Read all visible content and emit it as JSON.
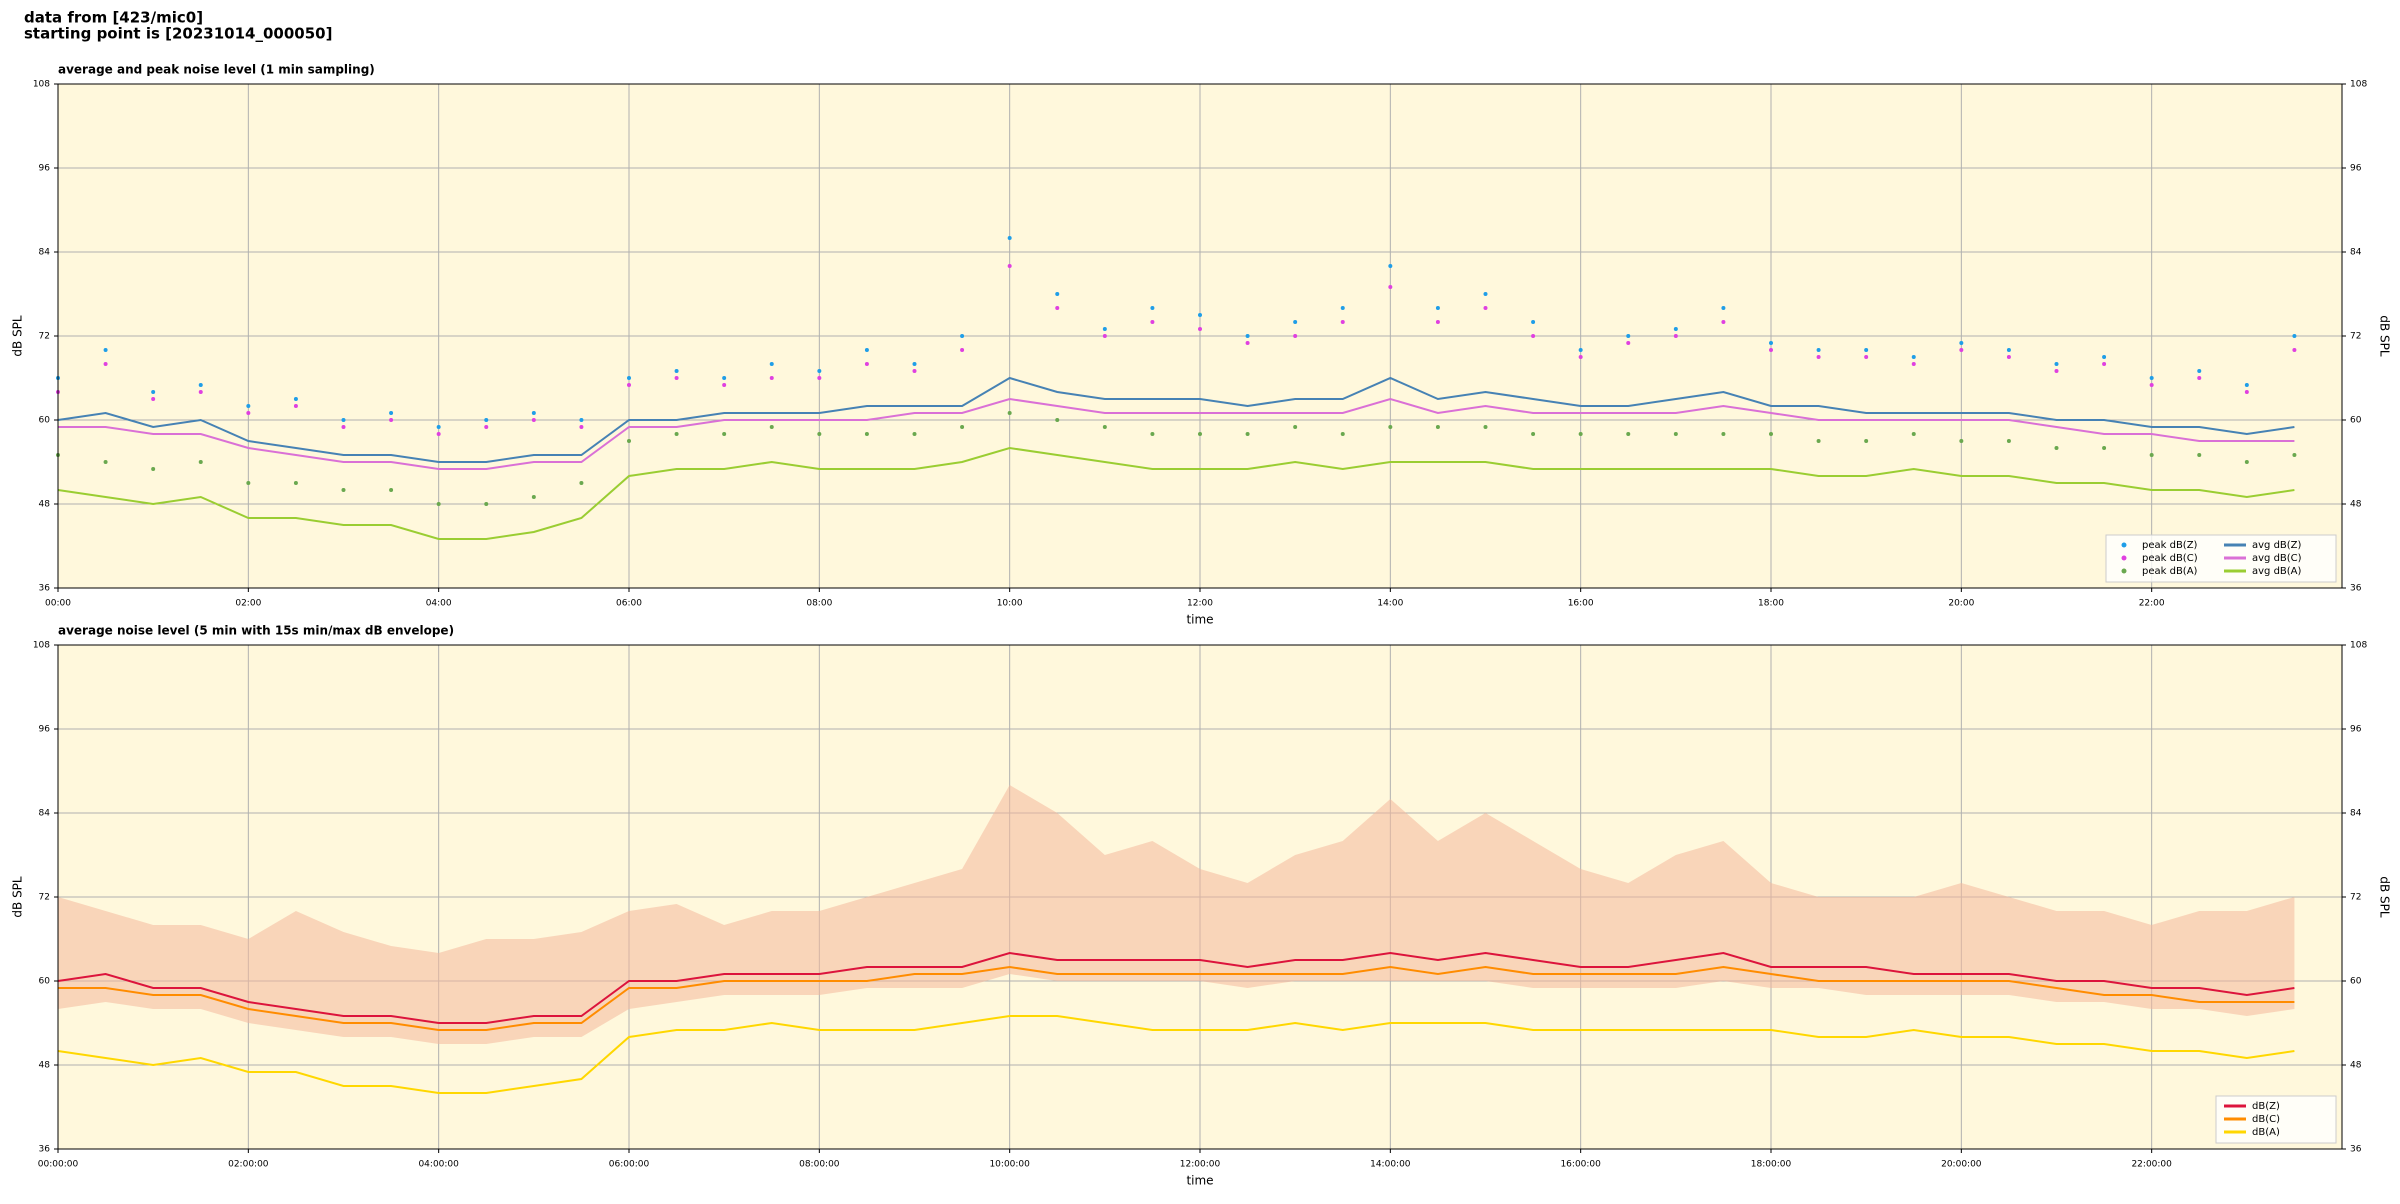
{
  "header": {
    "lines": [
      "data from [423/mic0]",
      "starting point is [20231014_000050]"
    ]
  },
  "chart_data": [
    {
      "type": "line",
      "title": "average and peak noise level (1 min sampling)",
      "xlabel": "time",
      "ylabel": "dB SPL",
      "x": [
        0,
        0.5,
        1,
        1.5,
        2,
        2.5,
        3,
        3.5,
        4,
        4.5,
        5,
        5.5,
        6,
        6.5,
        7,
        7.5,
        8,
        8.5,
        9,
        9.5,
        10,
        10.5,
        11,
        11.5,
        12,
        12.5,
        13,
        13.5,
        14,
        14.5,
        15,
        15.5,
        16,
        16.5,
        17,
        17.5,
        18,
        18.5,
        19,
        19.5,
        20,
        20.5,
        21,
        21.5,
        22,
        22.5,
        23,
        23.5
      ],
      "xlim": [
        0,
        24
      ],
      "xticks": [
        {
          "value": 0,
          "label": "00:00"
        },
        {
          "value": 2,
          "label": "02:00"
        },
        {
          "value": 4,
          "label": "04:00"
        },
        {
          "value": 6,
          "label": "06:00"
        },
        {
          "value": 8,
          "label": "08:00"
        },
        {
          "value": 10,
          "label": "10:00"
        },
        {
          "value": 12,
          "label": "12:00"
        },
        {
          "value": 14,
          "label": "14:00"
        },
        {
          "value": 16,
          "label": "16:00"
        },
        {
          "value": 18,
          "label": "18:00"
        },
        {
          "value": 20,
          "label": "20:00"
        },
        {
          "value": 22,
          "label": "22:00"
        }
      ],
      "ylim": [
        36,
        108
      ],
      "yticks": [
        36,
        48,
        60,
        72,
        84,
        96,
        108
      ],
      "grid": true,
      "legend": "lower right",
      "legend_columns": 2,
      "series": [
        {
          "name": "peak dB(Z)",
          "type": "scatter",
          "color": "#1f9ee8",
          "values": [
            66,
            70,
            64,
            65,
            62,
            63,
            60,
            61,
            59,
            60,
            61,
            60,
            66,
            67,
            66,
            68,
            67,
            70,
            68,
            72,
            86,
            78,
            73,
            76,
            75,
            72,
            74,
            76,
            82,
            76,
            78,
            74,
            70,
            72,
            73,
            76,
            71,
            70,
            70,
            69,
            71,
            70,
            68,
            69,
            66,
            67,
            65,
            72
          ]
        },
        {
          "name": "peak dB(C)",
          "type": "scatter",
          "color": "#e040e0",
          "values": [
            64,
            68,
            63,
            64,
            61,
            62,
            59,
            60,
            58,
            59,
            60,
            59,
            65,
            66,
            65,
            66,
            66,
            68,
            67,
            70,
            82,
            76,
            72,
            74,
            73,
            71,
            72,
            74,
            79,
            74,
            76,
            72,
            69,
            71,
            72,
            74,
            70,
            69,
            69,
            68,
            70,
            69,
            67,
            68,
            65,
            66,
            64,
            70
          ]
        },
        {
          "name": "peak dB(A)",
          "type": "scatter",
          "color": "#6aa84f",
          "values": [
            55,
            54,
            53,
            54,
            51,
            51,
            50,
            50,
            48,
            48,
            49,
            51,
            57,
            58,
            58,
            59,
            58,
            58,
            58,
            59,
            61,
            60,
            59,
            58,
            58,
            58,
            59,
            58,
            59,
            59,
            59,
            58,
            58,
            58,
            58,
            58,
            58,
            57,
            57,
            58,
            57,
            57,
            56,
            56,
            55,
            55,
            54,
            55
          ]
        },
        {
          "name": "avg dB(Z)",
          "type": "line",
          "color": "#4682b4",
          "values": [
            60,
            61,
            59,
            60,
            57,
            56,
            55,
            55,
            54,
            54,
            55,
            55,
            60,
            60,
            61,
            61,
            61,
            62,
            62,
            62,
            66,
            64,
            63,
            63,
            63,
            62,
            63,
            63,
            66,
            63,
            64,
            63,
            62,
            62,
            63,
            64,
            62,
            62,
            61,
            61,
            61,
            61,
            60,
            60,
            59,
            59,
            58,
            59
          ]
        },
        {
          "name": "avg dB(C)",
          "type": "line",
          "color": "#da70d6",
          "values": [
            59,
            59,
            58,
            58,
            56,
            55,
            54,
            54,
            53,
            53,
            54,
            54,
            59,
            59,
            60,
            60,
            60,
            60,
            61,
            61,
            63,
            62,
            61,
            61,
            61,
            61,
            61,
            61,
            63,
            61,
            62,
            61,
            61,
            61,
            61,
            62,
            61,
            60,
            60,
            60,
            60,
            60,
            59,
            58,
            58,
            57,
            57,
            57
          ]
        },
        {
          "name": "avg dB(A)",
          "type": "line",
          "color": "#9acd32",
          "values": [
            50,
            49,
            48,
            49,
            46,
            46,
            45,
            45,
            43,
            43,
            44,
            46,
            52,
            53,
            53,
            54,
            53,
            53,
            53,
            54,
            56,
            55,
            54,
            53,
            53,
            53,
            54,
            53,
            54,
            54,
            54,
            53,
            53,
            53,
            53,
            53,
            53,
            52,
            52,
            53,
            52,
            52,
            51,
            51,
            50,
            50,
            49,
            50
          ]
        }
      ]
    },
    {
      "type": "line",
      "title": "average noise level (5 min with 15s min/max dB envelope)",
      "xlabel": "time",
      "ylabel": "dB SPL",
      "x": [
        0,
        0.5,
        1,
        1.5,
        2,
        2.5,
        3,
        3.5,
        4,
        4.5,
        5,
        5.5,
        6,
        6.5,
        7,
        7.5,
        8,
        8.5,
        9,
        9.5,
        10,
        10.5,
        11,
        11.5,
        12,
        12.5,
        13,
        13.5,
        14,
        14.5,
        15,
        15.5,
        16,
        16.5,
        17,
        17.5,
        18,
        18.5,
        19,
        19.5,
        20,
        20.5,
        21,
        21.5,
        22,
        22.5,
        23,
        23.5
      ],
      "xlim": [
        0,
        24
      ],
      "xticks": [
        {
          "value": 0,
          "label": "00:00:00"
        },
        {
          "value": 2,
          "label": "02:00:00"
        },
        {
          "value": 4,
          "label": "04:00:00"
        },
        {
          "value": 6,
          "label": "06:00:00"
        },
        {
          "value": 8,
          "label": "08:00:00"
        },
        {
          "value": 10,
          "label": "10:00:00"
        },
        {
          "value": 12,
          "label": "12:00:00"
        },
        {
          "value": 14,
          "label": "14:00:00"
        },
        {
          "value": 16,
          "label": "16:00:00"
        },
        {
          "value": 18,
          "label": "18:00:00"
        },
        {
          "value": 20,
          "label": "20:00:00"
        },
        {
          "value": 22,
          "label": "22:00:00"
        }
      ],
      "ylim": [
        36,
        108
      ],
      "yticks": [
        36,
        48,
        60,
        72,
        84,
        96,
        108
      ],
      "grid": true,
      "legend": "lower right",
      "legend_columns": 1,
      "envelope": {
        "color": "#f4b89c",
        "min": [
          56,
          57,
          56,
          56,
          54,
          53,
          52,
          52,
          51,
          51,
          52,
          52,
          56,
          57,
          58,
          58,
          58,
          59,
          59,
          59,
          61,
          60,
          60,
          60,
          60,
          59,
          60,
          60,
          60,
          60,
          60,
          59,
          59,
          59,
          59,
          60,
          59,
          59,
          58,
          58,
          58,
          58,
          57,
          57,
          56,
          56,
          55,
          56
        ],
        "max": [
          72,
          70,
          68,
          68,
          66,
          70,
          67,
          65,
          64,
          66,
          66,
          67,
          70,
          71,
          68,
          70,
          70,
          72,
          74,
          76,
          88,
          84,
          78,
          80,
          76,
          74,
          78,
          80,
          86,
          80,
          84,
          80,
          76,
          74,
          78,
          80,
          74,
          72,
          72,
          72,
          74,
          72,
          70,
          70,
          68,
          70,
          70,
          72
        ]
      },
      "series": [
        {
          "name": "dB(Z)",
          "type": "line",
          "color": "#dc143c",
          "values": [
            60,
            61,
            59,
            59,
            57,
            56,
            55,
            55,
            54,
            54,
            55,
            55,
            60,
            60,
            61,
            61,
            61,
            62,
            62,
            62,
            64,
            63,
            63,
            63,
            63,
            62,
            63,
            63,
            64,
            63,
            64,
            63,
            62,
            62,
            63,
            64,
            62,
            62,
            62,
            61,
            61,
            61,
            60,
            60,
            59,
            59,
            58,
            59
          ]
        },
        {
          "name": "dB(C)",
          "type": "line",
          "color": "#ff8c00",
          "values": [
            59,
            59,
            58,
            58,
            56,
            55,
            54,
            54,
            53,
            53,
            54,
            54,
            59,
            59,
            60,
            60,
            60,
            60,
            61,
            61,
            62,
            61,
            61,
            61,
            61,
            61,
            61,
            61,
            62,
            61,
            62,
            61,
            61,
            61,
            61,
            62,
            61,
            60,
            60,
            60,
            60,
            60,
            59,
            58,
            58,
            57,
            57,
            57
          ]
        },
        {
          "name": "dB(A)",
          "type": "line",
          "color": "#ffd700",
          "values": [
            50,
            49,
            48,
            49,
            47,
            47,
            45,
            45,
            44,
            44,
            45,
            46,
            52,
            53,
            53,
            54,
            53,
            53,
            53,
            54,
            55,
            55,
            54,
            53,
            53,
            53,
            54,
            53,
            54,
            54,
            54,
            53,
            53,
            53,
            53,
            53,
            53,
            52,
            52,
            53,
            52,
            52,
            51,
            51,
            50,
            50,
            49,
            50
          ]
        }
      ]
    }
  ]
}
